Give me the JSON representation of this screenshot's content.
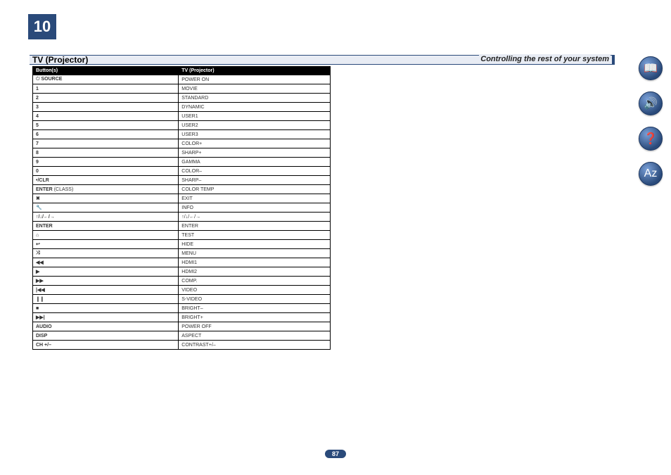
{
  "chapter_number": "10",
  "chapter_title": "Controlling the rest of your system",
  "section_title": "TV (Projector)",
  "page_number": "87",
  "table": {
    "headers": [
      "Button(s)",
      "TV (Projector)"
    ],
    "rows": [
      {
        "btn": "SOURCE",
        "btn_prefix": "⏻",
        "fn": "POWER ON"
      },
      {
        "btn": "1",
        "fn": "MOVIE"
      },
      {
        "btn": "2",
        "fn": "STANDARD"
      },
      {
        "btn": "3",
        "fn": "DYNAMIC"
      },
      {
        "btn": "4",
        "fn": "USER1"
      },
      {
        "btn": "5",
        "fn": "USER2"
      },
      {
        "btn": "6",
        "fn": "USER3"
      },
      {
        "btn": "7",
        "fn": "COLOR+"
      },
      {
        "btn": "8",
        "fn": "SHARP+"
      },
      {
        "btn": "9",
        "fn": "GAMMA"
      },
      {
        "btn": "0",
        "fn": "COLOR–"
      },
      {
        "btn": "•/CLR",
        "fn": "SHARP–"
      },
      {
        "btn_html": "<b>ENTER</b> <span class='normal'>(CLASS)</span>",
        "fn": "COLOR TEMP"
      },
      {
        "btn": "✖",
        "fn": "EXIT"
      },
      {
        "btn": "🔧",
        "fn": "INFO"
      },
      {
        "btn": "↑/↓/←/→",
        "fn": "↑/↓/←/→"
      },
      {
        "btn": "ENTER",
        "fn": "ENTER"
      },
      {
        "btn": "⌂",
        "fn": "TEST"
      },
      {
        "btn": "↩",
        "fn": "HIDE"
      },
      {
        "btn": "⤨",
        "fn": "MENU"
      },
      {
        "btn": "◀◀",
        "fn": "HDMI1"
      },
      {
        "btn": "▶",
        "fn": "HDMI2"
      },
      {
        "btn": "▶▶",
        "fn": "COMP."
      },
      {
        "btn": "|◀◀",
        "fn": "VIDEO"
      },
      {
        "btn": "❙❙",
        "fn": "S-VIDEO"
      },
      {
        "btn": "■",
        "fn": "BRIGHT–"
      },
      {
        "btn": "▶▶|",
        "fn": "BRIGHT+"
      },
      {
        "btn": "AUDIO",
        "fn": "POWER OFF"
      },
      {
        "btn": "DISP",
        "fn": "ASPECT"
      },
      {
        "btn": "CH +/–",
        "fn": "CONTRAST+/–"
      }
    ]
  },
  "side_icons": [
    {
      "name": "manual-icon",
      "glyph": "📖"
    },
    {
      "name": "device-icon",
      "glyph": "🔊"
    },
    {
      "name": "help-icon",
      "glyph": "❓"
    },
    {
      "name": "az-icon",
      "glyph": "Aᴢ"
    }
  ]
}
